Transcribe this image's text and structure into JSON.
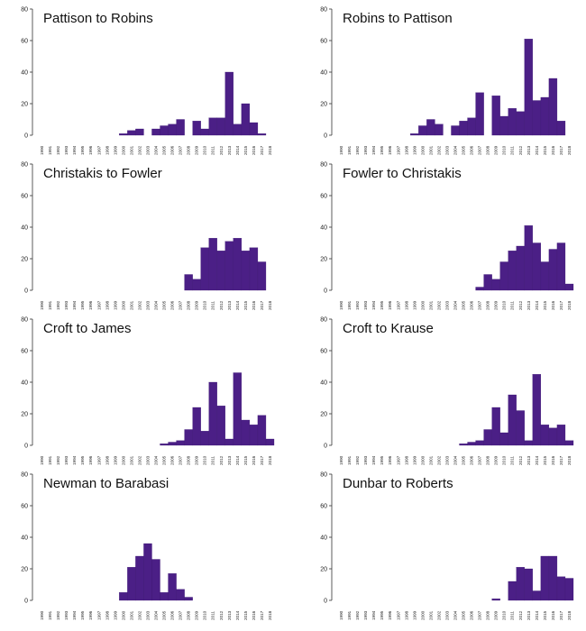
{
  "chart_data": [
    {
      "type": "bar",
      "title": "Pattison to Robins",
      "categories": [
        "1990",
        "1991",
        "1992",
        "1993",
        "1994",
        "1995",
        "1996",
        "1997",
        "1998",
        "1999",
        "2000",
        "2001",
        "2002",
        "2003",
        "2004",
        "2005",
        "2006",
        "2007",
        "2008",
        "2009",
        "2010",
        "2011",
        "2012",
        "2013",
        "2014",
        "2015",
        "2016",
        "2017",
        "2018"
      ],
      "values": [
        0,
        0,
        0,
        0,
        0,
        0,
        0,
        0,
        0,
        0,
        1,
        3,
        4,
        0,
        4,
        6,
        7,
        10,
        0,
        9,
        4,
        11,
        11,
        40,
        7,
        20,
        8,
        1,
        0
      ],
      "yticks": [
        0,
        20,
        40,
        60,
        80
      ],
      "ylim": [
        0,
        80
      ],
      "color": "#4b1f86"
    },
    {
      "type": "bar",
      "title": "Robins to Pattison",
      "categories": [
        "1990",
        "1991",
        "1992",
        "1993",
        "1994",
        "1995",
        "1996",
        "1997",
        "1998",
        "1999",
        "2000",
        "2001",
        "2002",
        "2003",
        "2004",
        "2005",
        "2006",
        "2007",
        "2008",
        "2009",
        "2010",
        "2011",
        "2012",
        "2013",
        "2014",
        "2015",
        "2016",
        "2017",
        "2018"
      ],
      "values": [
        0,
        0,
        0,
        0,
        0,
        0,
        0,
        0,
        0,
        1,
        6,
        10,
        7,
        0,
        6,
        9,
        11,
        27,
        0,
        25,
        12,
        17,
        15,
        61,
        22,
        24,
        36,
        9,
        0
      ],
      "yticks": [
        0,
        20,
        40,
        60,
        80
      ],
      "ylim": [
        0,
        80
      ],
      "color": "#4b1f86"
    },
    {
      "type": "bar",
      "title": "Christakis to Fowler",
      "categories": [
        "1990",
        "1991",
        "1992",
        "1993",
        "1994",
        "1995",
        "1996",
        "1997",
        "1998",
        "1999",
        "2000",
        "2001",
        "2002",
        "2003",
        "2004",
        "2005",
        "2006",
        "2007",
        "2008",
        "2009",
        "2010",
        "2011",
        "2012",
        "2013",
        "2014",
        "2015",
        "2016",
        "2017",
        "2018"
      ],
      "values": [
        0,
        0,
        0,
        0,
        0,
        0,
        0,
        0,
        0,
        0,
        0,
        0,
        0,
        0,
        0,
        0,
        0,
        0,
        10,
        7,
        27,
        33,
        25,
        31,
        33,
        25,
        27,
        18,
        0
      ],
      "yticks": [
        0,
        20,
        40,
        60,
        80
      ],
      "ylim": [
        0,
        80
      ],
      "color": "#4b1f86"
    },
    {
      "type": "bar",
      "title": "Fowler to Christakis",
      "categories": [
        "1990",
        "1991",
        "1992",
        "1993",
        "1994",
        "1995",
        "1996",
        "1997",
        "1998",
        "1999",
        "2000",
        "2001",
        "2002",
        "2003",
        "2004",
        "2005",
        "2006",
        "2007",
        "2008",
        "2009",
        "2010",
        "2011",
        "2012",
        "2013",
        "2014",
        "2015",
        "2016",
        "2017",
        "2018"
      ],
      "values": [
        0,
        0,
        0,
        0,
        0,
        0,
        0,
        0,
        0,
        0,
        0,
        0,
        0,
        0,
        0,
        0,
        0,
        2,
        10,
        7,
        18,
        25,
        28,
        41,
        30,
        18,
        26,
        30,
        4
      ],
      "yticks": [
        0,
        20,
        40,
        60,
        80
      ],
      "ylim": [
        0,
        80
      ],
      "color": "#4b1f86"
    },
    {
      "type": "bar",
      "title": "Croft to James",
      "categories": [
        "1990",
        "1991",
        "1992",
        "1993",
        "1994",
        "1995",
        "1996",
        "1997",
        "1998",
        "1999",
        "2000",
        "2001",
        "2002",
        "2003",
        "2004",
        "2005",
        "2006",
        "2007",
        "2008",
        "2009",
        "2010",
        "2011",
        "2012",
        "2013",
        "2014",
        "2015",
        "2016",
        "2017",
        "2018"
      ],
      "values": [
        0,
        0,
        0,
        0,
        0,
        0,
        0,
        0,
        0,
        0,
        0,
        0,
        0,
        0,
        0,
        1,
        2,
        3,
        10,
        24,
        9,
        40,
        25,
        4,
        46,
        16,
        13,
        19,
        4
      ],
      "yticks": [
        0,
        20,
        40,
        60,
        80
      ],
      "ylim": [
        0,
        80
      ],
      "color": "#4b1f86"
    },
    {
      "type": "bar",
      "title": "Croft to Krause",
      "categories": [
        "1990",
        "1991",
        "1992",
        "1993",
        "1994",
        "1995",
        "1996",
        "1997",
        "1998",
        "1999",
        "2000",
        "2001",
        "2002",
        "2003",
        "2004",
        "2005",
        "2006",
        "2007",
        "2008",
        "2009",
        "2010",
        "2011",
        "2012",
        "2013",
        "2014",
        "2015",
        "2016",
        "2017",
        "2018"
      ],
      "values": [
        0,
        0,
        0,
        0,
        0,
        0,
        0,
        0,
        0,
        0,
        0,
        0,
        0,
        0,
        0,
        1,
        2,
        3,
        10,
        24,
        8,
        32,
        22,
        3,
        45,
        13,
        11,
        13,
        3
      ],
      "yticks": [
        0,
        20,
        40,
        60,
        80
      ],
      "ylim": [
        0,
        80
      ],
      "color": "#4b1f86"
    },
    {
      "type": "bar",
      "title": "Newman to Barabasi",
      "categories": [
        "1990",
        "1991",
        "1992",
        "1993",
        "1994",
        "1995",
        "1996",
        "1997",
        "1998",
        "1999",
        "2000",
        "2001",
        "2002",
        "2003",
        "2004",
        "2005",
        "2006",
        "2007",
        "2008",
        "2009",
        "2010",
        "2011",
        "2012",
        "2013",
        "2014",
        "2015",
        "2016",
        "2017",
        "2018"
      ],
      "values": [
        0,
        0,
        0,
        0,
        0,
        0,
        0,
        0,
        0,
        0,
        5,
        21,
        28,
        36,
        26,
        5,
        17,
        7,
        2,
        0,
        0,
        0,
        0,
        0,
        0,
        0,
        0,
        0,
        0
      ],
      "yticks": [
        0,
        20,
        40,
        60,
        80
      ],
      "ylim": [
        0,
        80
      ],
      "color": "#4b1f86"
    },
    {
      "type": "bar",
      "title": "Dunbar to Roberts",
      "categories": [
        "1990",
        "1991",
        "1992",
        "1993",
        "1994",
        "1995",
        "1996",
        "1997",
        "1998",
        "1999",
        "2000",
        "2001",
        "2002",
        "2003",
        "2004",
        "2005",
        "2006",
        "2007",
        "2008",
        "2009",
        "2010",
        "2011",
        "2012",
        "2013",
        "2014",
        "2015",
        "2016",
        "2017",
        "2018"
      ],
      "values": [
        0,
        0,
        0,
        0,
        0,
        0,
        0,
        0,
        0,
        0,
        0,
        0,
        0,
        0,
        0,
        0,
        0,
        0,
        0,
        1,
        0,
        12,
        21,
        20,
        6,
        28,
        28,
        15,
        14
      ],
      "yticks": [
        0,
        20,
        40,
        60,
        80
      ],
      "ylim": [
        0,
        80
      ],
      "color": "#4b1f86"
    }
  ]
}
